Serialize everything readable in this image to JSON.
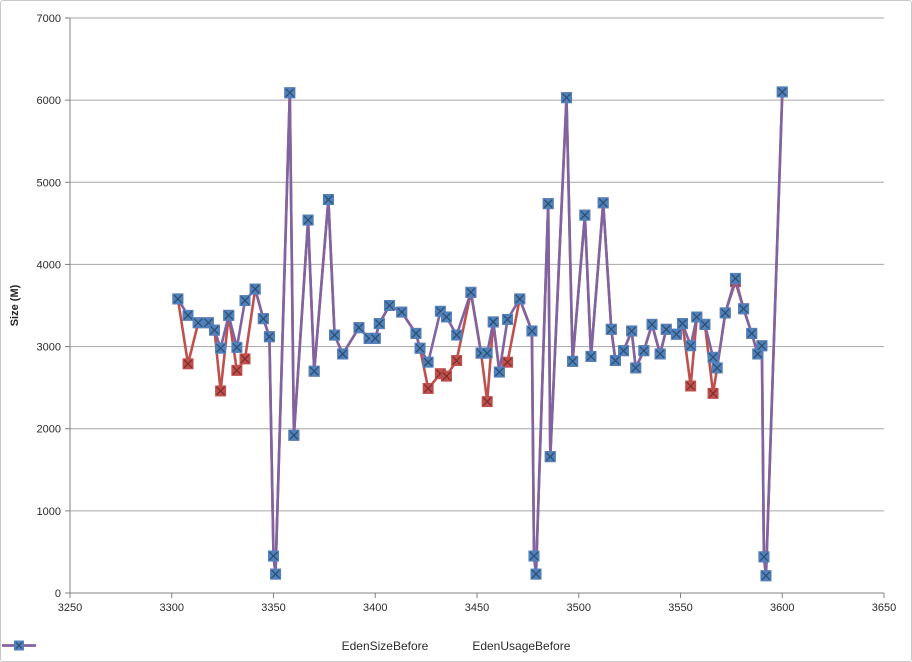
{
  "chart": {
    "y_axis_title": "Size (M)",
    "y_ticks": [
      0,
      1000,
      2000,
      3000,
      4000,
      5000,
      6000,
      7000
    ],
    "x_ticks": [
      3250,
      3300,
      3350,
      3400,
      3450,
      3500,
      3550,
      3600,
      3650
    ],
    "grid_color": "#a6a6a6",
    "axis_color": "#808080",
    "label_color": "#2b2b2b"
  },
  "chart_data": {
    "type": "line",
    "title": "",
    "xlabel": "",
    "ylabel": "Size (M)",
    "xlim": [
      3250,
      3650
    ],
    "ylim": [
      0,
      7000
    ],
    "grid": "horizontal-major",
    "legend_position": "bottom",
    "series": [
      {
        "name": "EdenSizeBefore",
        "line_color": "#C0504D",
        "marker_color": "#C0504D",
        "marker_cross_color": "#7B2E2C",
        "x": [
          3303,
          3308,
          3313,
          3318,
          3321,
          3324,
          3328,
          3332,
          3336,
          3341,
          3345,
          3348,
          3350,
          3351,
          3358,
          3360,
          3367,
          3370,
          3377,
          3380,
          3384,
          3392,
          3397,
          3400,
          3402,
          3407,
          3413,
          3420,
          3422,
          3426,
          3432,
          3435,
          3440,
          3447,
          3452,
          3455,
          3458,
          3461,
          3465,
          3471,
          3477,
          3478,
          3479,
          3485,
          3486,
          3494,
          3497,
          3503,
          3506,
          3512,
          3516,
          3518,
          3522,
          3526,
          3528,
          3532,
          3536,
          3540,
          3543,
          3548,
          3551,
          3555,
          3558,
          3562,
          3566,
          3568,
          3572,
          3577,
          3581,
          3585,
          3588,
          3590,
          3591,
          3592,
          3600
        ],
        "y": [
          3580,
          2790,
          3290,
          3290,
          3200,
          2460,
          3380,
          2710,
          2850,
          3700,
          3340,
          3120,
          450,
          230,
          6090,
          1920,
          4540,
          2700,
          4790,
          3140,
          2910,
          3230,
          3100,
          3100,
          3280,
          3500,
          3420,
          3160,
          2980,
          2490,
          2670,
          2640,
          2830,
          3660,
          2920,
          2330,
          3300,
          2690,
          2810,
          3580,
          3190,
          450,
          230,
          4740,
          1660,
          6030,
          2820,
          4600,
          2880,
          4750,
          3210,
          2830,
          2950,
          3190,
          2740,
          2950,
          3270,
          2910,
          3210,
          3150,
          3280,
          2520,
          3360,
          3270,
          2430,
          2740,
          3410,
          3790,
          3460,
          3160,
          2910,
          3010,
          440,
          210,
          6100
        ]
      },
      {
        "name": "EdenUsageBefore",
        "line_color": "#8064A2",
        "marker_color": "#4F81BD",
        "marker_cross_color": "#2E4D6B",
        "x": [
          3303,
          3308,
          3313,
          3318,
          3321,
          3324,
          3328,
          3332,
          3336,
          3341,
          3345,
          3348,
          3350,
          3351,
          3358,
          3360,
          3367,
          3370,
          3377,
          3380,
          3384,
          3392,
          3397,
          3400,
          3402,
          3407,
          3413,
          3420,
          3422,
          3426,
          3432,
          3435,
          3440,
          3447,
          3452,
          3455,
          3458,
          3461,
          3465,
          3471,
          3477,
          3478,
          3479,
          3485,
          3486,
          3494,
          3497,
          3503,
          3506,
          3512,
          3516,
          3518,
          3522,
          3526,
          3528,
          3532,
          3536,
          3540,
          3543,
          3548,
          3551,
          3555,
          3558,
          3562,
          3566,
          3568,
          3572,
          3577,
          3581,
          3585,
          3588,
          3590,
          3591,
          3592,
          3600
        ],
        "y": [
          3580,
          3380,
          3290,
          3290,
          3200,
          2980,
          3380,
          2990,
          3560,
          3700,
          3340,
          3120,
          450,
          230,
          6090,
          1920,
          4540,
          2700,
          4790,
          3140,
          2910,
          3230,
          3100,
          3100,
          3280,
          3500,
          3420,
          3160,
          2980,
          2810,
          3430,
          3360,
          3140,
          3660,
          2920,
          2920,
          3300,
          2690,
          3330,
          3580,
          3190,
          450,
          230,
          4740,
          1660,
          6030,
          2820,
          4600,
          2880,
          4750,
          3210,
          2830,
          2950,
          3190,
          2740,
          2950,
          3270,
          2910,
          3210,
          3150,
          3280,
          3010,
          3360,
          3270,
          2870,
          2740,
          3410,
          3830,
          3460,
          3160,
          2910,
          3010,
          440,
          210,
          6100
        ]
      }
    ]
  }
}
